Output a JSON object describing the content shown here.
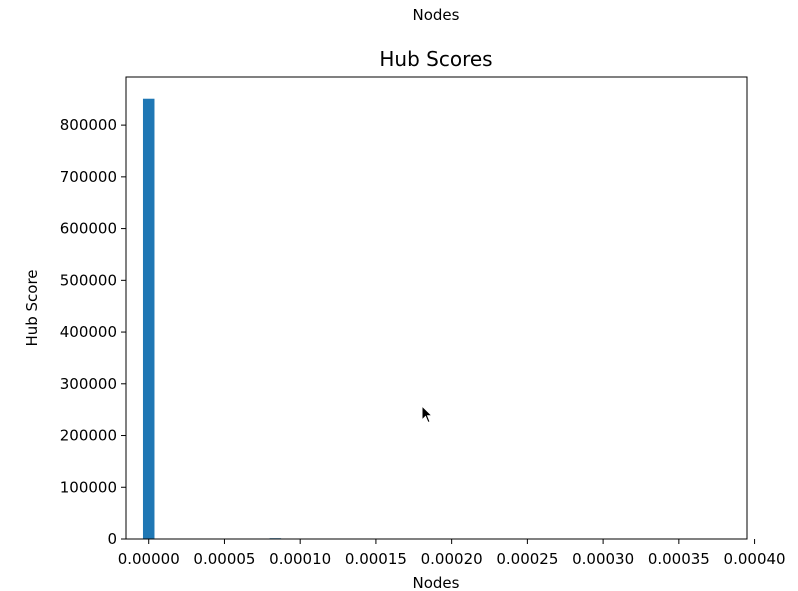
{
  "window_title": "Nodes",
  "chart_data": {
    "type": "bar",
    "title": "Hub Scores",
    "xlabel": "Nodes",
    "ylabel": "Hub Score",
    "xlim": [
      -1.5e-05,
      0.000395
    ],
    "ylim": [
      0,
      893000
    ],
    "xticks": [
      0,
      5e-05,
      0.0001,
      0.00015,
      0.0002,
      0.00025,
      0.0003,
      0.00035,
      0.0004
    ],
    "xtick_labels": [
      "0.00000",
      "0.00005",
      "0.00010",
      "0.00015",
      "0.00020",
      "0.00025",
      "0.00030",
      "0.00035",
      "0.00040"
    ],
    "yticks": [
      0,
      100000,
      200000,
      300000,
      400000,
      500000,
      600000,
      700000,
      800000
    ],
    "ytick_labels": [
      "0",
      "100000",
      "200000",
      "300000",
      "400000",
      "500000",
      "600000",
      "700000",
      "800000"
    ],
    "bin_width": 7.6e-06,
    "bars": [
      {
        "x": 0.0,
        "value": 851000
      },
      {
        "x": 8.36e-05,
        "value": 1500
      }
    ],
    "bar_color": "#1f77b4",
    "grid": false
  }
}
